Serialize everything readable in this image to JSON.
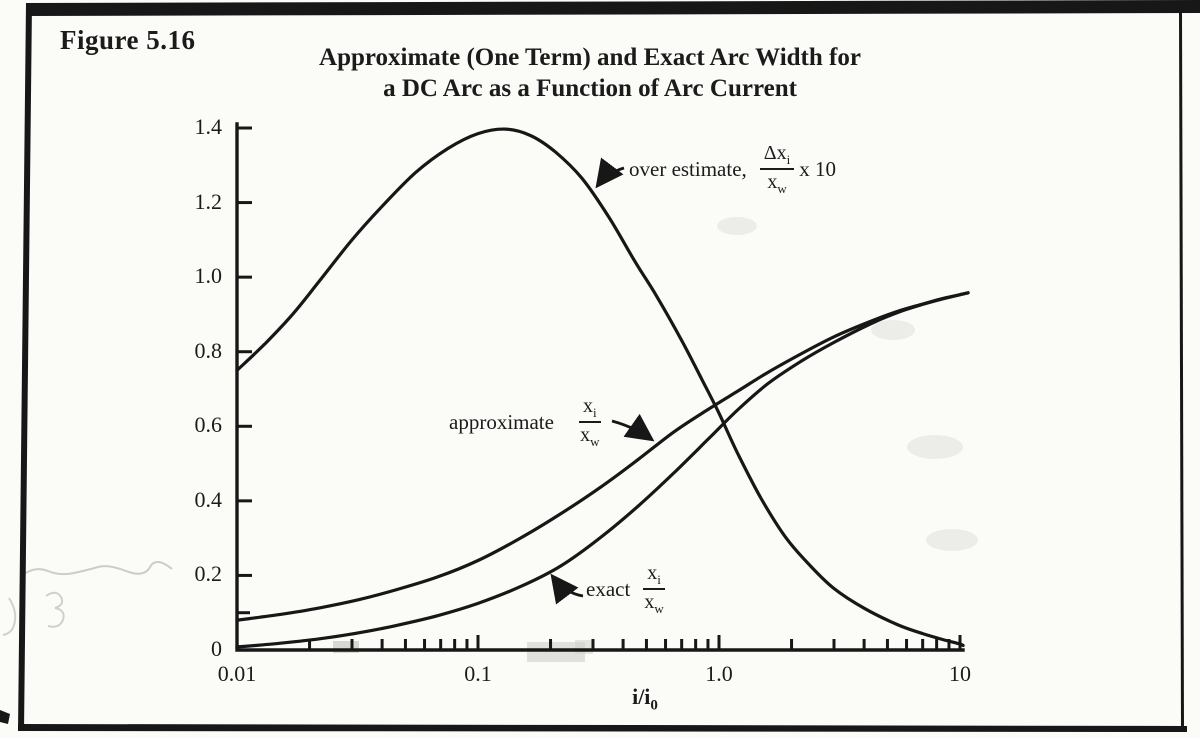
{
  "figure": {
    "label": "Figure 5.16",
    "title_line1": "Approximate (One Term) and Exact Arc Width for",
    "title_line2": "a DC Arc as a Function of Arc Current"
  },
  "chart_data": {
    "type": "line",
    "title": "Approximate (One Term) and Exact Arc Width for a DC Arc as a Function of Arc Current",
    "xlabel": "i/i",
    "xlabel_sub": "0",
    "ylabel": "",
    "x_scale": "log",
    "xlim": [
      0.01,
      10
    ],
    "ylim": [
      0,
      1.4
    ],
    "grid": false,
    "legend_position": "inline-annotations",
    "axes": {
      "x": {
        "ticks": [
          {
            "v": 0.01,
            "label": "0.01"
          },
          {
            "v": 0.1,
            "label": "0.1"
          },
          {
            "v": 1.0,
            "label": "1.0"
          },
          {
            "v": 10,
            "label": "10"
          }
        ],
        "minor": [
          0.02,
          0.03,
          0.04,
          0.05,
          0.06,
          0.07,
          0.08,
          0.09,
          0.2,
          0.3,
          0.4,
          0.5,
          0.6,
          0.7,
          0.8,
          0.9,
          2,
          3,
          4,
          5,
          6,
          7,
          8,
          9
        ]
      },
      "y": {
        "ticks": [
          {
            "v": 0,
            "label": "0"
          },
          {
            "v": 0.2,
            "label": "0.2"
          },
          {
            "v": 0.4,
            "label": "0.4"
          },
          {
            "v": 0.6,
            "label": "0.6"
          },
          {
            "v": 0.8,
            "label": "0.8"
          },
          {
            "v": 1.0,
            "label": "1.0"
          },
          {
            "v": 1.2,
            "label": "1.2"
          },
          {
            "v": 1.4,
            "label": "1.4"
          }
        ],
        "minor": [
          0.1
        ]
      }
    },
    "series": [
      {
        "name": "over_estimate",
        "label": "over estimate,",
        "frac": {
          "num": "Δx",
          "num_sub": "i",
          "den": "x",
          "den_sub": "w"
        },
        "suffix": "x 10",
        "points": [
          [
            0.01,
            0.75
          ],
          [
            0.013,
            0.82
          ],
          [
            0.017,
            0.9
          ],
          [
            0.022,
            0.99
          ],
          [
            0.03,
            1.1
          ],
          [
            0.04,
            1.19
          ],
          [
            0.055,
            1.28
          ],
          [
            0.075,
            1.345
          ],
          [
            0.1,
            1.385
          ],
          [
            0.13,
            1.397
          ],
          [
            0.165,
            1.38
          ],
          [
            0.21,
            1.335
          ],
          [
            0.27,
            1.265
          ],
          [
            0.35,
            1.16
          ],
          [
            0.45,
            1.04
          ],
          [
            0.55,
            0.95
          ],
          [
            0.7,
            0.83
          ],
          [
            0.85,
            0.725
          ],
          [
            1.0,
            0.635
          ],
          [
            1.2,
            0.525
          ],
          [
            1.5,
            0.405
          ],
          [
            1.9,
            0.3
          ],
          [
            2.4,
            0.225
          ],
          [
            3.0,
            0.165
          ],
          [
            4.0,
            0.112
          ],
          [
            5.5,
            0.068
          ],
          [
            7.0,
            0.044
          ],
          [
            8.5,
            0.028
          ],
          [
            10.0,
            0.016
          ],
          [
            10.3,
            0.012
          ]
        ]
      },
      {
        "name": "approximate",
        "label": "approximate",
        "frac": {
          "num": "x",
          "num_sub": "i",
          "den": "x",
          "den_sub": "w"
        },
        "points": [
          [
            0.01,
            0.08
          ],
          [
            0.015,
            0.095
          ],
          [
            0.022,
            0.113
          ],
          [
            0.032,
            0.135
          ],
          [
            0.046,
            0.162
          ],
          [
            0.068,
            0.196
          ],
          [
            0.1,
            0.24
          ],
          [
            0.15,
            0.3
          ],
          [
            0.22,
            0.365
          ],
          [
            0.32,
            0.435
          ],
          [
            0.46,
            0.51
          ],
          [
            0.65,
            0.585
          ],
          [
            0.9,
            0.645
          ],
          [
            1.2,
            0.695
          ],
          [
            1.6,
            0.745
          ],
          [
            2.2,
            0.795
          ],
          [
            3.0,
            0.84
          ],
          [
            4.2,
            0.88
          ],
          [
            5.5,
            0.908
          ],
          [
            7.0,
            0.928
          ],
          [
            8.5,
            0.943
          ],
          [
            10.0,
            0.953
          ],
          [
            10.8,
            0.958
          ]
        ]
      },
      {
        "name": "exact",
        "label": "exact",
        "frac": {
          "num": "x",
          "num_sub": "i",
          "den": "x",
          "den_sub": "w"
        },
        "points": [
          [
            0.01,
            0.008
          ],
          [
            0.015,
            0.018
          ],
          [
            0.022,
            0.03
          ],
          [
            0.032,
            0.046
          ],
          [
            0.046,
            0.066
          ],
          [
            0.068,
            0.092
          ],
          [
            0.1,
            0.125
          ],
          [
            0.15,
            0.17
          ],
          [
            0.22,
            0.225
          ],
          [
            0.32,
            0.3
          ],
          [
            0.46,
            0.385
          ],
          [
            0.65,
            0.475
          ],
          [
            0.9,
            0.565
          ],
          [
            1.2,
            0.645
          ],
          [
            1.6,
            0.715
          ],
          [
            2.2,
            0.775
          ],
          [
            3.0,
            0.825
          ],
          [
            4.2,
            0.873
          ],
          [
            5.5,
            0.905
          ],
          [
            7.0,
            0.927
          ],
          [
            8.5,
            0.942
          ],
          [
            10.0,
            0.953
          ],
          [
            10.8,
            0.958
          ]
        ]
      }
    ],
    "ink_color": "#171717"
  }
}
